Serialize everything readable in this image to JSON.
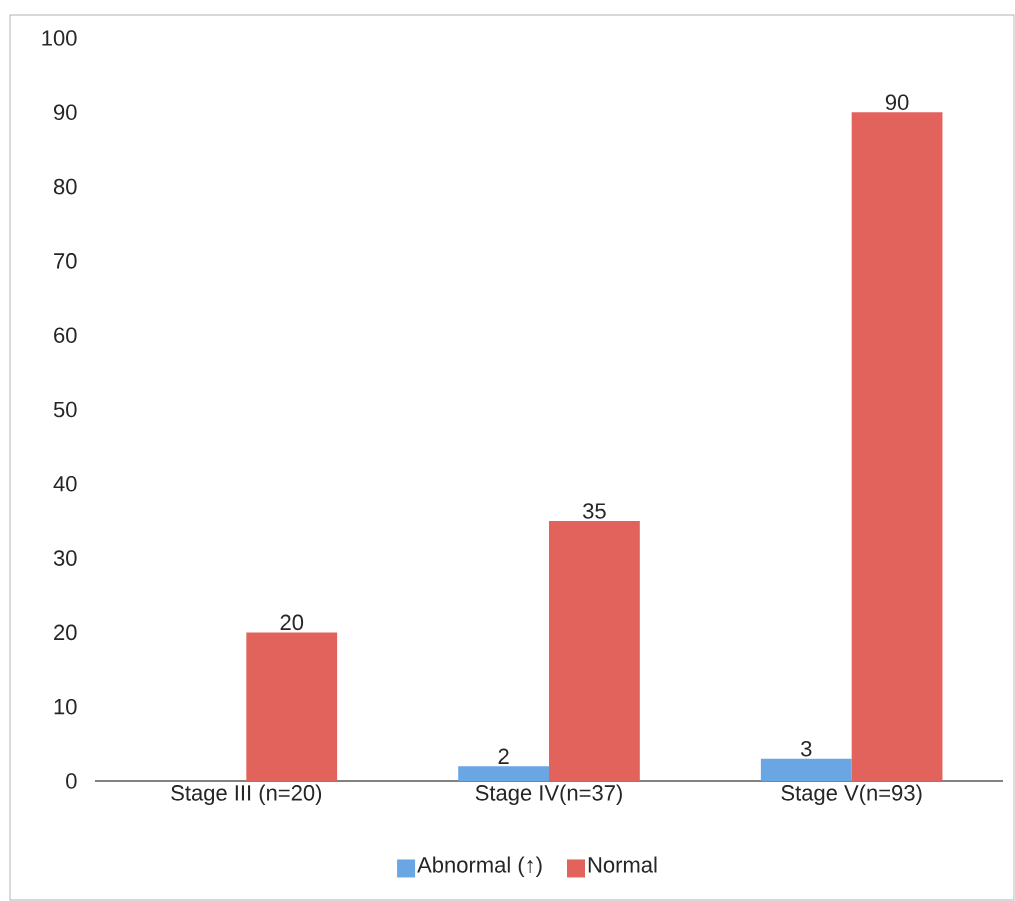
{
  "chart_data": {
    "type": "bar",
    "categories": [
      "Stage III (n=20)",
      "Stage IV(n=37)",
      "Stage V(n=93)"
    ],
    "series": [
      {
        "name": "Abnormal (↑)",
        "color": "#6aa6e4",
        "values": [
          0,
          2,
          3
        ],
        "value_labels": [
          null,
          "2",
          "3"
        ]
      },
      {
        "name": "Normal",
        "color": "#e2625c",
        "values": [
          20,
          35,
          90
        ],
        "value_labels": [
          "20",
          "35",
          "90"
        ]
      }
    ],
    "ylim": [
      0,
      100
    ],
    "yticks": [
      0,
      10,
      20,
      30,
      40,
      50,
      60,
      70,
      80,
      90,
      100
    ],
    "grid": false,
    "legend": "bottom"
  }
}
